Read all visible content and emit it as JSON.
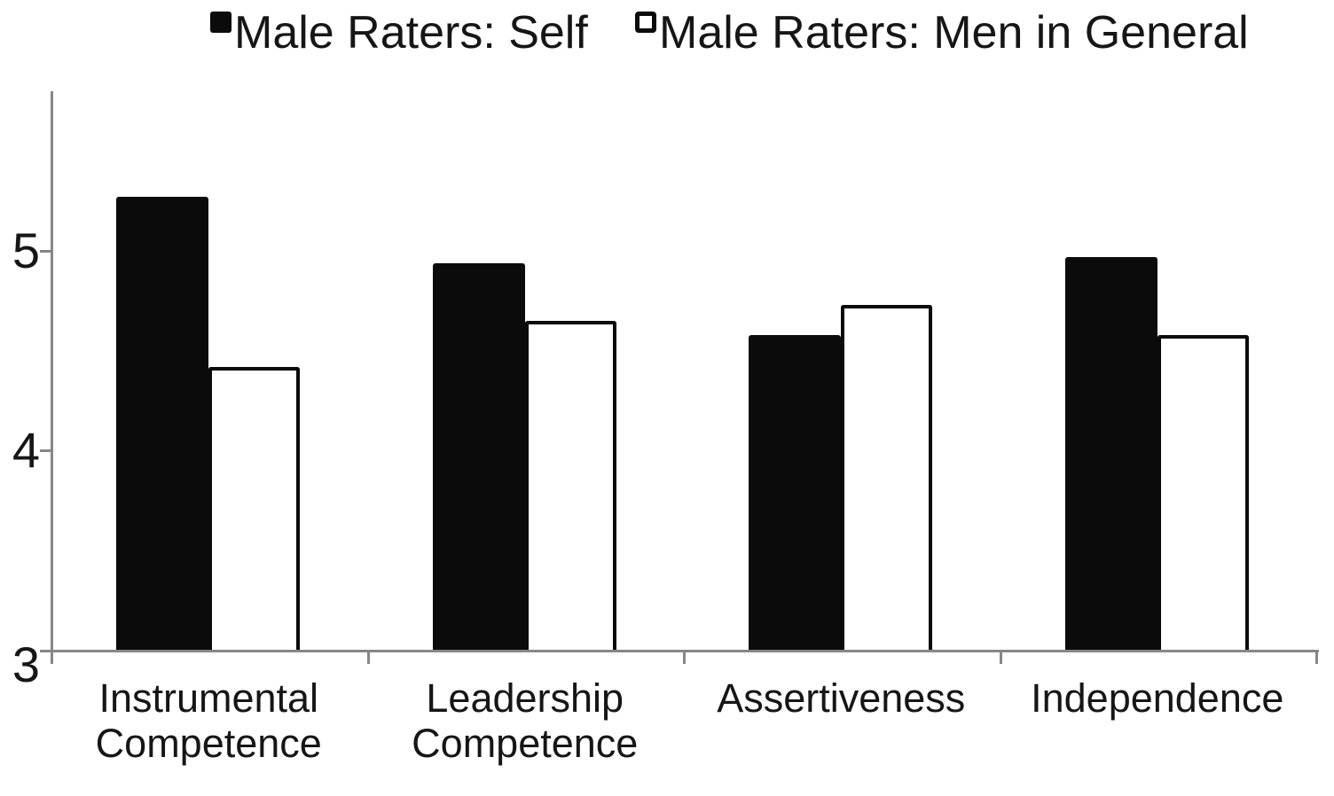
{
  "colors": {
    "background": "#ffffff",
    "bar_filled": "#0b0b0b",
    "bar_open_fill": "#ffffff",
    "bar_open_border": "#0b0b0b",
    "axis": "#878787",
    "text": "#161616"
  },
  "chart_data": {
    "type": "bar",
    "categories": [
      "Instrumental\nCompetence",
      "Leadership\nCompetence",
      "Assertiveness",
      "Independence"
    ],
    "series": [
      {
        "name": "Male Raters: Self",
        "style": "filled",
        "marker": "filled-black-square",
        "values": [
          5.27,
          4.94,
          4.58,
          4.97
        ]
      },
      {
        "name": "Male Raters: Men in General",
        "style": "open",
        "marker": "open-white-square",
        "values": [
          4.42,
          4.65,
          4.73,
          4.58
        ]
      }
    ],
    "title": "",
    "ylim": [
      3,
      5.8
    ],
    "yticks": [
      3,
      4,
      5
    ],
    "legend_position": "top",
    "grid": false
  }
}
